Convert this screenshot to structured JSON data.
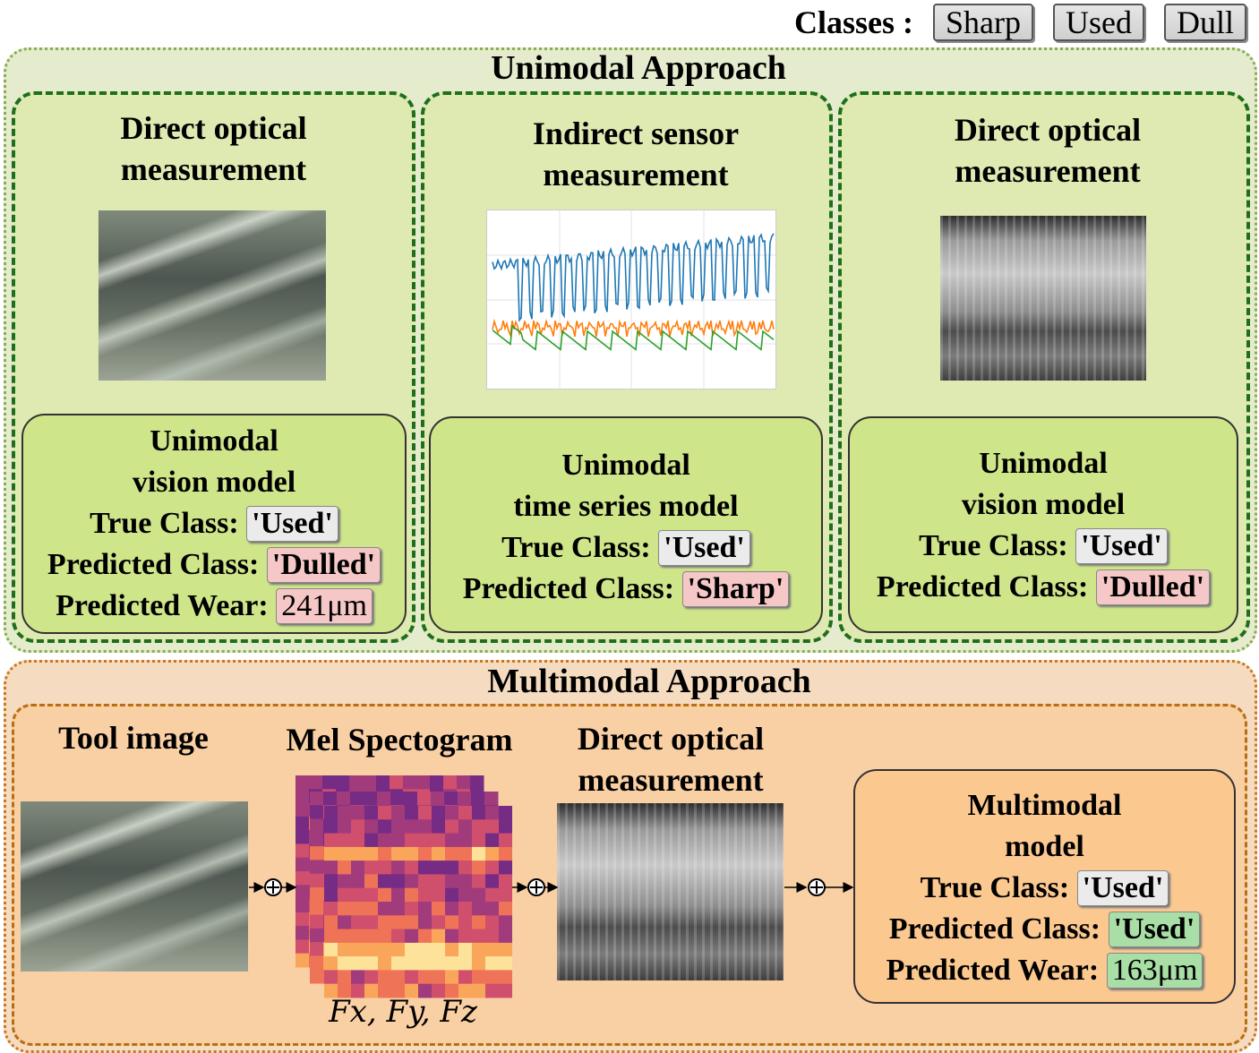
{
  "legend": {
    "label": "Classes :",
    "classes": [
      "Sharp",
      "Used",
      "Dull"
    ]
  },
  "unimodal": {
    "title": "Unimodal Approach",
    "panels": [
      {
        "heading_line1": "Direct optical",
        "heading_line2": "measurement",
        "model_line1": "Unimodal",
        "model_line2": "vision model",
        "true_label": "True Class:",
        "true_value": "'Used'",
        "pred_label": "Predicted Class:",
        "pred_value": "'Dulled'",
        "wear_label": "Predicted Wear:",
        "wear_value": "241μm"
      },
      {
        "heading_line1": "Indirect sensor",
        "heading_line2": "measurement",
        "model_line1": "Unimodal",
        "model_line2": "time series model",
        "true_label": "True Class:",
        "true_value": "'Used'",
        "pred_label": "Predicted Class:",
        "pred_value": "'Sharp'"
      },
      {
        "heading_line1": "Direct optical",
        "heading_line2": "measurement",
        "model_line1": "Unimodal",
        "model_line2": "vision model",
        "true_label": "True Class:",
        "true_value": "'Used'",
        "pred_label": "Predicted Class:",
        "pred_value": "'Dulled'"
      }
    ]
  },
  "multimodal": {
    "title": "Multimodal Approach",
    "tool_image_label": "Tool image",
    "mel_label": "Mel Spectogram",
    "forces_label": "Fx, Fy, Fz",
    "optical_line1": "Direct optical",
    "optical_line2": "measurement",
    "model_line1": "Multimodal",
    "model_line2": "model",
    "true_label": "True Class:",
    "true_value": "'Used'",
    "pred_label": "Predicted Class:",
    "pred_value": "'Used'",
    "wear_label": "Predicted Wear:",
    "wear_value": "163μm"
  },
  "colors": {
    "series": [
      "#1f77b4",
      "#ff7f0e",
      "#2ca02c"
    ]
  }
}
